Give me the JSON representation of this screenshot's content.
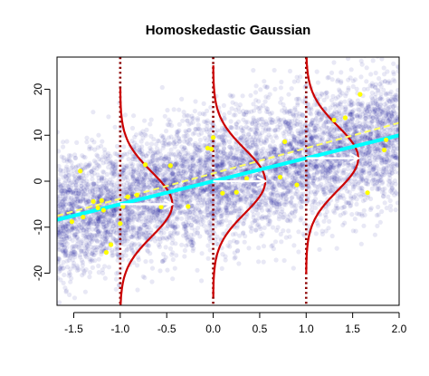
{
  "chart_data": {
    "type": "scatter",
    "title": "Homoskedastic Gaussian",
    "xlabel": "",
    "ylabel": "",
    "xlim": [
      -1.68,
      2.0
    ],
    "ylim": [
      -27,
      27
    ],
    "x_ticks": [
      -1.5,
      -1.0,
      -0.5,
      0.0,
      0.5,
      1.0,
      1.5,
      2.0
    ],
    "x_tick_labels": [
      "-1.5",
      "-1.0",
      "-0.5",
      "0.0",
      "0.5",
      "1.0",
      "1.5",
      "2.0"
    ],
    "y_ticks": [
      -20,
      -10,
      0,
      10,
      20
    ],
    "y_tick_labels": [
      "-20",
      "-10",
      "0",
      "10",
      "20"
    ],
    "grid": false,
    "legend": "none",
    "population_cloud": {
      "description_color": "#00008b",
      "intercept": 0.0,
      "slope": 5.0,
      "sd": 7.0,
      "x_range": [
        -1.68,
        2.0
      ]
    },
    "series": [
      {
        "kind": "true_regression_line",
        "style": "solid",
        "color": "#00ffff",
        "intercept": 0.0,
        "slope": 5.0
      },
      {
        "kind": "fitted_line",
        "style": "dashed",
        "color": "#ffff66",
        "intercept": 1.7,
        "slope": 5.5
      },
      {
        "kind": "sample_points",
        "color": "#ffff00",
        "points": [
          [
            -1.52,
            -8.8
          ],
          [
            -1.43,
            2.2
          ],
          [
            -1.4,
            -7.8
          ],
          [
            -1.29,
            -4.4
          ],
          [
            -1.24,
            -5.8
          ],
          [
            -1.2,
            -4.2
          ],
          [
            -1.18,
            -6.3
          ],
          [
            -1.15,
            -15.5
          ],
          [
            -1.1,
            -13.8
          ],
          [
            -1.0,
            -9.2
          ],
          [
            -0.97,
            -5.5
          ],
          [
            -0.92,
            -3.4
          ],
          [
            -0.82,
            -3.0
          ],
          [
            -0.73,
            3.6
          ],
          [
            -0.56,
            -5.6
          ],
          [
            -0.46,
            3.4
          ],
          [
            -0.27,
            -5.5
          ],
          [
            -0.06,
            7.2
          ],
          [
            -0.02,
            7.0
          ],
          [
            0.0,
            9.5
          ],
          [
            0.1,
            -2.6
          ],
          [
            0.25,
            -2.4
          ],
          [
            0.36,
            0.6
          ],
          [
            0.72,
            0.9
          ],
          [
            0.77,
            8.6
          ],
          [
            0.9,
            -0.8
          ],
          [
            1.3,
            13.3
          ],
          [
            1.42,
            13.8
          ],
          [
            1.58,
            18.9
          ],
          [
            1.66,
            -2.5
          ],
          [
            1.84,
            6.8
          ],
          [
            1.86,
            9.0
          ]
        ]
      }
    ],
    "conditional_densities": [
      {
        "x": -1.0,
        "mean": -5.0,
        "sd": 7.0,
        "color": "#cc0000",
        "vline_color": "#8b0000",
        "vline_style": "dotted"
      },
      {
        "x": 0.0,
        "mean": 0.0,
        "sd": 7.0,
        "color": "#cc0000",
        "vline_color": "#8b0000",
        "vline_style": "dotted"
      },
      {
        "x": 1.0,
        "mean": 5.0,
        "sd": 7.0,
        "color": "#cc0000",
        "vline_color": "#8b0000",
        "vline_style": "dotted"
      }
    ],
    "arrows": [
      {
        "from": [
          -1.0,
          -5.0
        ],
        "to": [
          -0.44,
          -5.0
        ],
        "color": "#ffffff"
      },
      {
        "from": [
          0.0,
          0.0
        ],
        "to": [
          0.56,
          0.0
        ],
        "color": "#ffffff"
      },
      {
        "from": [
          1.0,
          5.0
        ],
        "to": [
          1.56,
          5.0
        ],
        "color": "#ffffff"
      }
    ]
  }
}
